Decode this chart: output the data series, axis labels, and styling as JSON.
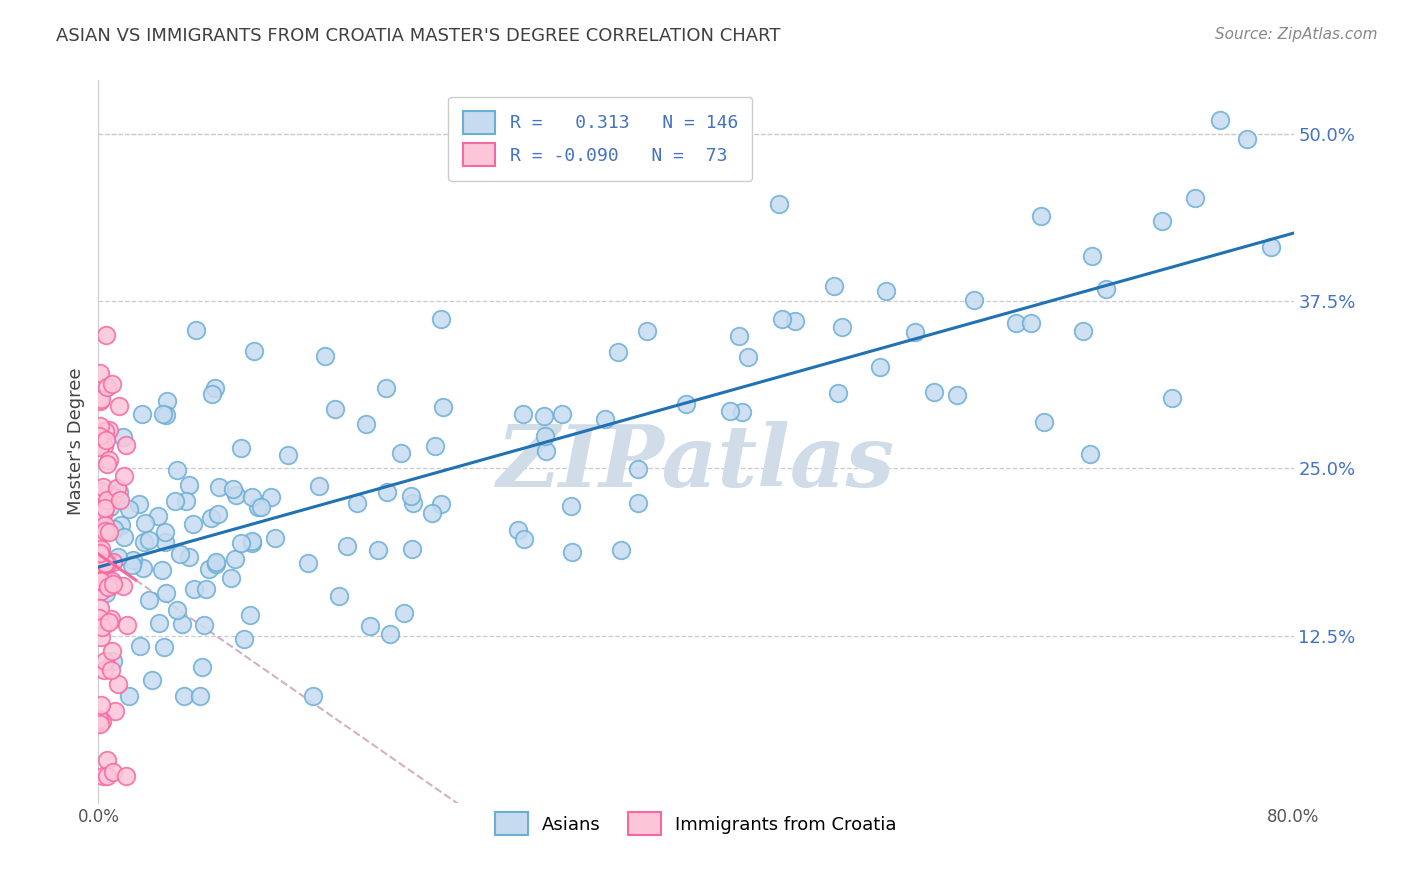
{
  "title": "ASIAN VS IMMIGRANTS FROM CROATIA MASTER'S DEGREE CORRELATION CHART",
  "source": "Source: ZipAtlas.com",
  "ylabel": "Master's Degree",
  "yticks_labels": [
    "12.5%",
    "25.0%",
    "37.5%",
    "50.0%"
  ],
  "ytick_vals": [
    0.125,
    0.25,
    0.375,
    0.5
  ],
  "xlim": [
    0.0,
    0.8
  ],
  "ylim": [
    0.0,
    0.54
  ],
  "r_asian": 0.313,
  "n_asian": 146,
  "r_croatia": -0.09,
  "n_croatia": 73,
  "blue_dot_face": "#c6dbef",
  "blue_dot_edge": "#6baed6",
  "pink_dot_face": "#fcc5d8",
  "pink_dot_edge": "#f768a1",
  "blue_line_color": "#2171b5",
  "pink_line_solid": "#f768a1",
  "pink_line_dashed": "#d4b0c0",
  "ytick_color": "#4472c4",
  "watermark_color": "#d0dce8",
  "grid_color": "#cccccc",
  "background_color": "#ffffff",
  "legend_edge_color": "#cccccc",
  "title_color": "#404040",
  "source_color": "#888888",
  "ylabel_color": "#444444"
}
